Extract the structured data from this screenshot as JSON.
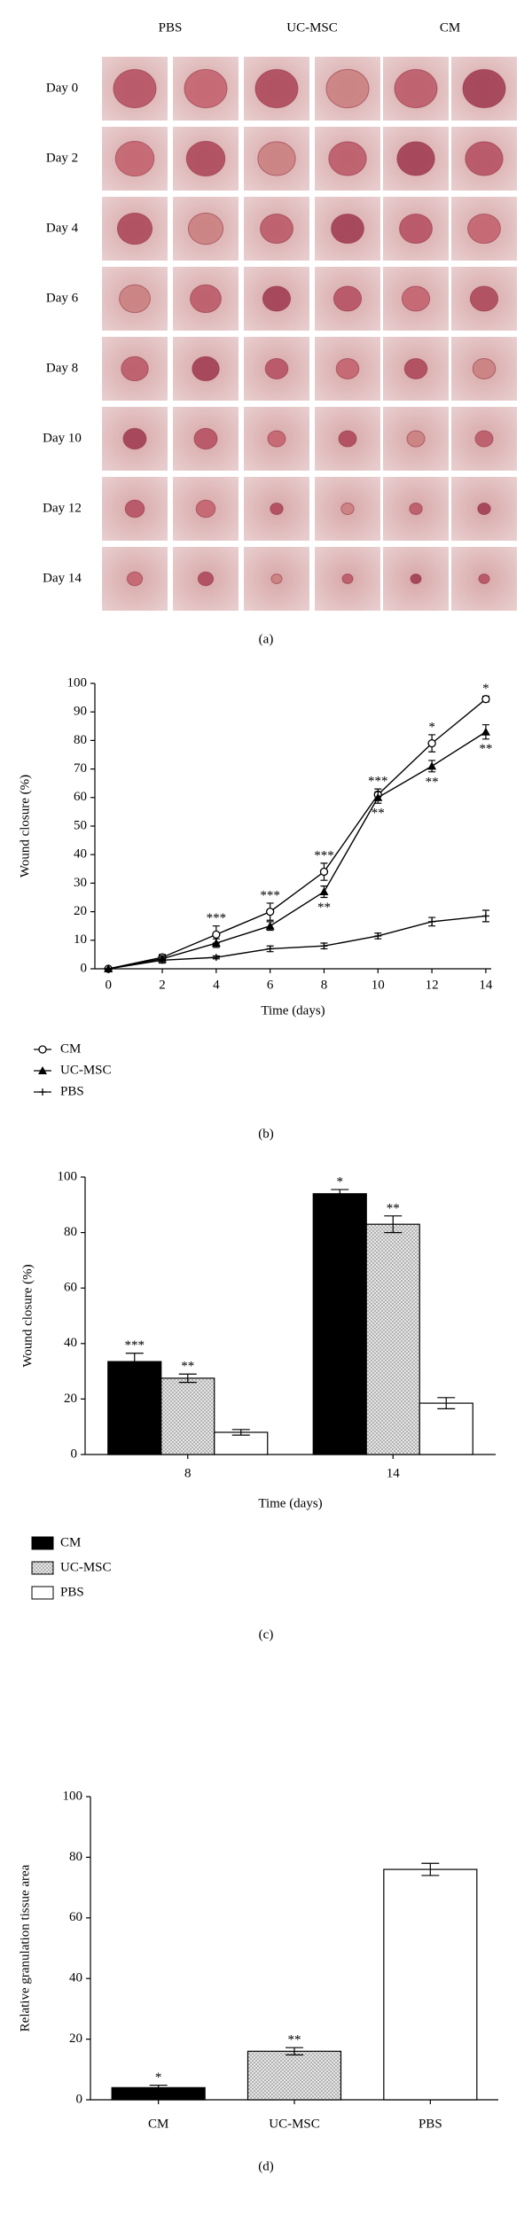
{
  "figure_a": {
    "columns": [
      "PBS",
      "UC-MSC",
      "CM"
    ],
    "rows": [
      "Day 0",
      "Day 2",
      "Day 4",
      "Day 6",
      "Day 8",
      "Day 10",
      "Day 12",
      "Day 14"
    ],
    "panel_label": "(a)"
  },
  "chart_data": [
    {
      "type": "line",
      "panel_label": "(b)",
      "xlabel": "Time (days)",
      "ylabel": "Wound closure (%)",
      "x": [
        0,
        2,
        4,
        6,
        8,
        10,
        12,
        14
      ],
      "xlim": [
        -0.5,
        14.2
      ],
      "xticks": [
        0,
        2,
        4,
        6,
        8,
        10,
        12,
        14
      ],
      "ylim": [
        0,
        100
      ],
      "yticks": [
        0,
        10,
        20,
        30,
        40,
        50,
        60,
        70,
        80,
        90,
        100
      ],
      "legend": "bottom-left",
      "series": [
        {
          "name": "CM",
          "color": "#000000",
          "marker": "circle",
          "values": [
            0,
            4,
            12,
            20,
            34,
            61,
            79,
            94.5
          ],
          "errors": [
            0,
            1,
            3,
            3,
            3,
            2,
            3,
            1
          ]
        },
        {
          "name": "UC-MSC",
          "color": "#000000",
          "marker": "triangle",
          "values": [
            0,
            3.5,
            9,
            15,
            27,
            60,
            71,
            83
          ],
          "errors": [
            0,
            1,
            1.5,
            1.5,
            2,
            2,
            2,
            2.5
          ]
        },
        {
          "name": "PBS",
          "color": "#000000",
          "marker": "plus",
          "values": [
            0,
            3,
            4,
            7,
            8,
            11.5,
            16.5,
            18.5
          ],
          "errors": [
            0,
            1,
            0.5,
            1,
            1,
            1,
            1.5,
            2
          ]
        }
      ],
      "annotations": [
        {
          "series": 0,
          "index": 2,
          "text": "***",
          "anchor": "above"
        },
        {
          "series": 0,
          "index": 3,
          "text": "***",
          "anchor": "above"
        },
        {
          "series": 0,
          "index": 4,
          "text": "***",
          "anchor": "above"
        },
        {
          "series": 0,
          "index": 5,
          "text": "***",
          "anchor": "above"
        },
        {
          "series": 0,
          "index": 6,
          "text": "*",
          "anchor": "above"
        },
        {
          "series": 0,
          "index": 7,
          "text": "*",
          "anchor": "above"
        },
        {
          "series": 1,
          "index": 4,
          "text": "**",
          "anchor": "below"
        },
        {
          "series": 1,
          "index": 5,
          "text": "**",
          "anchor": "below"
        },
        {
          "series": 1,
          "index": 6,
          "text": "**",
          "anchor": "below"
        },
        {
          "series": 1,
          "index": 7,
          "text": "**",
          "anchor": "below"
        }
      ]
    },
    {
      "type": "bar",
      "panel_label": "(c)",
      "xlabel": "Time (days)",
      "ylabel": "Wound closure (%)",
      "categories": [
        "8",
        "14"
      ],
      "ylim": [
        0,
        100
      ],
      "yticks": [
        0,
        20,
        40,
        60,
        80,
        100
      ],
      "legend": "bottom-left",
      "series": [
        {
          "name": "CM",
          "color": "#000000",
          "fill": "solid",
          "values": [
            33.5,
            94
          ],
          "errors": [
            3,
            1.5
          ]
        },
        {
          "name": "UC-MSC",
          "color": "#e6e6e6",
          "fill": "dots",
          "values": [
            27.5,
            83
          ],
          "errors": [
            1.5,
            3
          ]
        },
        {
          "name": "PBS",
          "color": "#ffffff",
          "fill": "solid",
          "values": [
            8,
            18.5
          ],
          "errors": [
            1,
            2
          ]
        }
      ],
      "annotations": [
        {
          "series": 0,
          "index": 0,
          "text": "***",
          "anchor": "above"
        },
        {
          "series": 0,
          "index": 1,
          "text": "*",
          "anchor": "above"
        },
        {
          "series": 1,
          "index": 0,
          "text": "**",
          "anchor": "above"
        },
        {
          "series": 1,
          "index": 1,
          "text": "**",
          "anchor": "above"
        }
      ]
    },
    {
      "type": "bar",
      "panel_label": "(d)",
      "ylabel": "Relative granulation tissue area",
      "categories": [
        "CM",
        "UC-MSC",
        "PBS"
      ],
      "values": [
        4,
        16,
        76
      ],
      "errors": [
        0.8,
        1.2,
        2
      ],
      "colors": [
        "#000000",
        "#e6e6e6",
        "#ffffff"
      ],
      "fills": [
        "solid",
        "dots",
        "solid"
      ],
      "ylim": [
        0,
        100
      ],
      "yticks": [
        0,
        20,
        40,
        60,
        80,
        100
      ],
      "annotations": [
        {
          "index": 0,
          "text": "*",
          "anchor": "above"
        },
        {
          "index": 1,
          "text": "**",
          "anchor": "above"
        }
      ]
    }
  ]
}
